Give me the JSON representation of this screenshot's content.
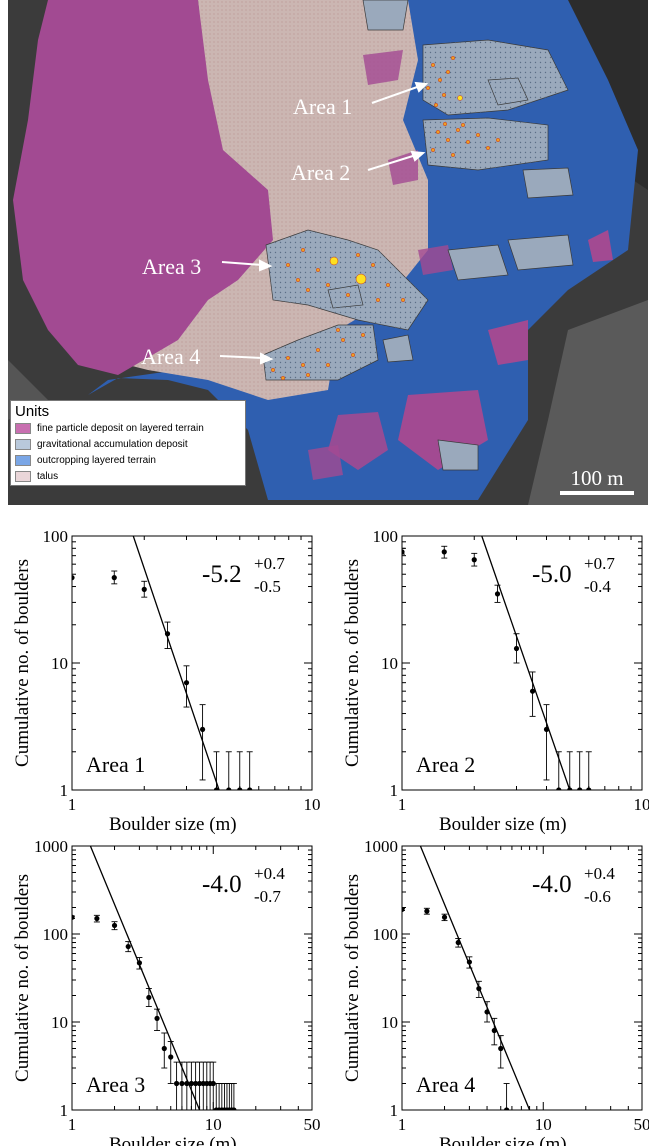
{
  "map": {
    "area_labels": [
      "Area 1",
      "Area 2",
      "Area 3",
      "Area 4"
    ],
    "legend": {
      "title": "Units",
      "items": [
        {
          "label": "fine particle deposit on layered terrain",
          "color": "#c86fb0"
        },
        {
          "label": "gravitational accumulation deposit",
          "color": "#b9c9dc"
        },
        {
          "label": "outcropping layered terrain",
          "color": "#7aa6e6"
        },
        {
          "label": "talus",
          "color": "#ead6d9"
        }
      ]
    },
    "scale_label": "100 m",
    "colors": {
      "fine": "#a24a92",
      "gravitational": "#9aa9bc",
      "outcrop": "#2f5fb0",
      "talus": "#cbb6b2",
      "background": "#3a3a3a",
      "boulder": "#f0a020"
    }
  },
  "chart_data": [
    {
      "type": "scatter",
      "panel": "Area 1",
      "xlabel": "Boulder size (m)",
      "ylabel": "Cumulative no. of boulders",
      "xscale": "log",
      "yscale": "log",
      "xlim": [
        1,
        10
      ],
      "ylim": [
        1,
        100
      ],
      "xticks": [
        1,
        10
      ],
      "yticks": [
        1,
        10,
        100
      ],
      "annotation": {
        "label": "Area 1",
        "exponent": "-5.2",
        "sup": "+0.7",
        "sub": "-0.5"
      },
      "points": [
        {
          "x": 1.0,
          "y": 47,
          "lo": 47,
          "hi": 47
        },
        {
          "x": 1.5,
          "y": 47,
          "lo": 42,
          "hi": 53
        },
        {
          "x": 2.0,
          "y": 38,
          "lo": 33,
          "hi": 44
        },
        {
          "x": 2.5,
          "y": 17,
          "lo": 13,
          "hi": 21
        },
        {
          "x": 3.0,
          "y": 7,
          "lo": 4.5,
          "hi": 9.5
        },
        {
          "x": 3.5,
          "y": 3,
          "lo": 1.2,
          "hi": 4.7
        },
        {
          "x": 4.0,
          "y": 1,
          "lo": 1,
          "hi": 2
        },
        {
          "x": 4.5,
          "y": 1,
          "lo": 1,
          "hi": 2
        },
        {
          "x": 5.0,
          "y": 1,
          "lo": 1,
          "hi": 2
        },
        {
          "x": 5.5,
          "y": 1,
          "lo": 1,
          "hi": 2
        }
      ],
      "fit": {
        "x": [
          1.8,
          4.1
        ],
        "y": [
          100,
          1
        ]
      }
    },
    {
      "type": "scatter",
      "panel": "Area 2",
      "xlabel": "Boulder size (m)",
      "ylabel": "Cumulative no. of boulders",
      "xscale": "log",
      "yscale": "log",
      "xlim": [
        1,
        10
      ],
      "ylim": [
        1,
        100
      ],
      "xticks": [
        1,
        10
      ],
      "yticks": [
        1,
        10,
        100
      ],
      "annotation": {
        "label": "Area 2",
        "exponent": "-5.0",
        "sup": "+0.7",
        "sub": "-0.4"
      },
      "points": [
        {
          "x": 1.0,
          "y": 75,
          "lo": 72,
          "hi": 80
        },
        {
          "x": 1.5,
          "y": 75,
          "lo": 67,
          "hi": 83
        },
        {
          "x": 2.0,
          "y": 65,
          "lo": 58,
          "hi": 73
        },
        {
          "x": 2.5,
          "y": 35,
          "lo": 30,
          "hi": 41
        },
        {
          "x": 3.0,
          "y": 13,
          "lo": 10,
          "hi": 17
        },
        {
          "x": 3.5,
          "y": 6,
          "lo": 3.8,
          "hi": 8.5
        },
        {
          "x": 4.0,
          "y": 3,
          "lo": 1.2,
          "hi": 4.7
        },
        {
          "x": 4.5,
          "y": 1,
          "lo": 1,
          "hi": 2
        },
        {
          "x": 5.0,
          "y": 1,
          "lo": 1,
          "hi": 2
        },
        {
          "x": 5.5,
          "y": 1,
          "lo": 1,
          "hi": 2
        },
        {
          "x": 6.0,
          "y": 1,
          "lo": 1,
          "hi": 2
        }
      ],
      "fit": {
        "x": [
          2.15,
          5.0
        ],
        "y": [
          100,
          1
        ]
      }
    },
    {
      "type": "scatter",
      "panel": "Area 3",
      "xlabel": "Boulder size (m)",
      "ylabel": "Cumulative no. of boulders",
      "xscale": "log",
      "yscale": "log",
      "xlim": [
        1,
        50
      ],
      "ylim": [
        1,
        1000
      ],
      "xticks": [
        1,
        10,
        50
      ],
      "yticks": [
        1,
        10,
        100,
        1000
      ],
      "annotation": {
        "label": "Area 3",
        "exponent": "-4.0",
        "sup": "+0.4",
        "sub": "-0.7"
      },
      "points": [
        {
          "x": 1.0,
          "y": 155,
          "lo": 150,
          "hi": 160
        },
        {
          "x": 1.5,
          "y": 150,
          "lo": 137,
          "hi": 163
        },
        {
          "x": 2.0,
          "y": 125,
          "lo": 112,
          "hi": 138
        },
        {
          "x": 2.5,
          "y": 72,
          "lo": 63,
          "hi": 82
        },
        {
          "x": 3.0,
          "y": 47,
          "lo": 40,
          "hi": 54
        },
        {
          "x": 3.5,
          "y": 19,
          "lo": 15,
          "hi": 24
        },
        {
          "x": 4.0,
          "y": 11,
          "lo": 8,
          "hi": 14
        },
        {
          "x": 4.5,
          "y": 5,
          "lo": 3,
          "hi": 7.5
        },
        {
          "x": 5.0,
          "y": 4,
          "lo": 2,
          "hi": 6
        },
        {
          "x": 5.5,
          "y": 2,
          "lo": 1,
          "hi": 3.5
        },
        {
          "x": 6.0,
          "y": 2,
          "lo": 1,
          "hi": 3.5
        },
        {
          "x": 6.5,
          "y": 2,
          "lo": 1,
          "hi": 3.5
        },
        {
          "x": 7.0,
          "y": 2,
          "lo": 1,
          "hi": 3.5
        },
        {
          "x": 7.5,
          "y": 2,
          "lo": 1,
          "hi": 3.5
        },
        {
          "x": 8.0,
          "y": 2,
          "lo": 1,
          "hi": 3.5
        },
        {
          "x": 8.5,
          "y": 2,
          "lo": 1,
          "hi": 3.5
        },
        {
          "x": 9.0,
          "y": 2,
          "lo": 1,
          "hi": 3.5
        },
        {
          "x": 9.5,
          "y": 2,
          "lo": 1,
          "hi": 3.5
        },
        {
          "x": 10.0,
          "y": 2,
          "lo": 1,
          "hi": 3.5
        },
        {
          "x": 10.5,
          "y": 1,
          "lo": 1,
          "hi": 2
        },
        {
          "x": 11.0,
          "y": 1,
          "lo": 1,
          "hi": 2
        },
        {
          "x": 11.5,
          "y": 1,
          "lo": 1,
          "hi": 2
        },
        {
          "x": 12.0,
          "y": 1,
          "lo": 1,
          "hi": 2
        },
        {
          "x": 12.5,
          "y": 1,
          "lo": 1,
          "hi": 2
        },
        {
          "x": 13.0,
          "y": 1,
          "lo": 1,
          "hi": 2
        },
        {
          "x": 13.5,
          "y": 1,
          "lo": 1,
          "hi": 2
        },
        {
          "x": 14.0,
          "y": 1,
          "lo": 1,
          "hi": 2
        }
      ],
      "fit": {
        "x": [
          1.35,
          8.0
        ],
        "y": [
          1000,
          1
        ]
      }
    },
    {
      "type": "scatter",
      "panel": "Area 4",
      "xlabel": "Boulder size (m)",
      "ylabel": "Cumulative no. of boulders",
      "xscale": "log",
      "yscale": "log",
      "xlim": [
        1,
        50
      ],
      "ylim": [
        1,
        1000
      ],
      "xticks": [
        1,
        10,
        50
      ],
      "yticks": [
        1,
        10,
        100,
        1000
      ],
      "annotation": {
        "label": "Area 4",
        "exponent": "-4.0",
        "sup": "+0.4",
        "sub": "-0.6"
      },
      "points": [
        {
          "x": 1.0,
          "y": 190,
          "lo": 185,
          "hi": 195
        },
        {
          "x": 1.5,
          "y": 182,
          "lo": 168,
          "hi": 196
        },
        {
          "x": 2.0,
          "y": 155,
          "lo": 142,
          "hi": 168
        },
        {
          "x": 2.5,
          "y": 80,
          "lo": 71,
          "hi": 89
        },
        {
          "x": 3.0,
          "y": 48,
          "lo": 41,
          "hi": 55
        },
        {
          "x": 3.5,
          "y": 24,
          "lo": 19,
          "hi": 29
        },
        {
          "x": 4.0,
          "y": 13,
          "lo": 10,
          "hi": 17
        },
        {
          "x": 4.5,
          "y": 8,
          "lo": 5.5,
          "hi": 11
        },
        {
          "x": 5.0,
          "y": 5,
          "lo": 3,
          "hi": 7
        },
        {
          "x": 5.5,
          "y": 1,
          "lo": 1,
          "hi": 2
        }
      ],
      "fit": {
        "x": [
          1.35,
          8.0
        ],
        "y": [
          1000,
          1
        ]
      }
    }
  ]
}
